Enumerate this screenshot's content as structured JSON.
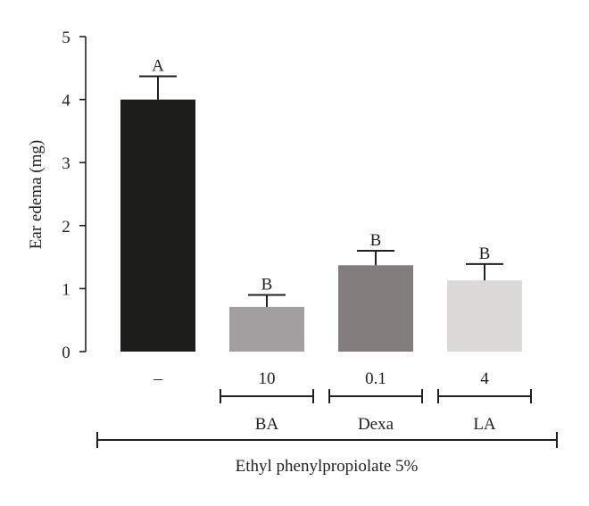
{
  "chart_data": {
    "type": "bar",
    "title": "",
    "ylabel": "Ear edema (mg)",
    "ylim": [
      0,
      5
    ],
    "yticks": [
      0,
      1,
      2,
      3,
      4,
      5
    ],
    "categories": [
      "–",
      "10",
      "0.1",
      "4"
    ],
    "values": [
      4.0,
      0.71,
      1.37,
      1.13
    ],
    "errors": [
      0.37,
      0.19,
      0.23,
      0.26
    ],
    "significance": [
      "A",
      "B",
      "B",
      "B"
    ],
    "colors": [
      "#1d1e1c",
      "#a39e9f",
      "#827d7c",
      "#dcdad8"
    ],
    "groups": [
      {
        "label": "BA",
        "categories": [
          1
        ]
      },
      {
        "label": "Dexa",
        "categories": [
          2
        ]
      },
      {
        "label": "LA",
        "categories": [
          3
        ]
      }
    ],
    "treatment_label": "Ethyl phenylpropiolate 5%",
    "grid": false,
    "legend": "none"
  }
}
